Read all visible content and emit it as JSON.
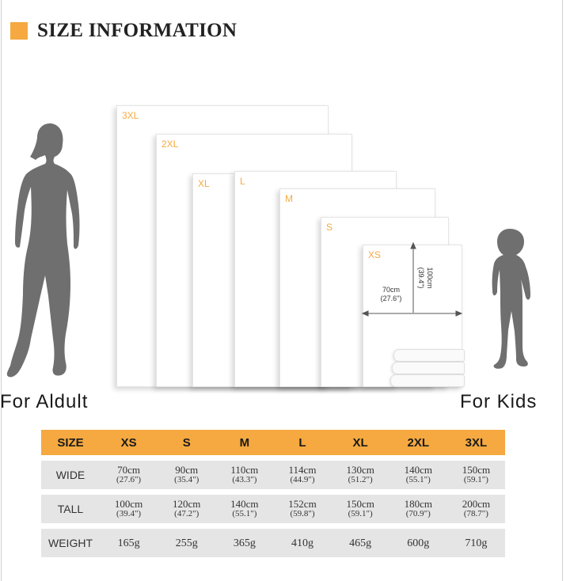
{
  "header": {
    "title": "SIZE INFORMATION",
    "accent": "#f5a940"
  },
  "captions": {
    "adult": "For  Aldult",
    "kids": "For  Kids"
  },
  "sheets": [
    "3XL",
    "2XL",
    "XL",
    "L",
    "M",
    "S",
    "XS"
  ],
  "dimension_labels": {
    "width_cm": "70cm",
    "width_in": "(27.6\")",
    "height_cm": "100cm",
    "height_in": "(39.4\")"
  },
  "colors": {
    "accent": "#f5a940",
    "label_orange": "#f5a940",
    "row_gray": "#e5e5e5",
    "silhouette": "#6f6f6f"
  },
  "table": {
    "header": [
      "SIZE",
      "XS",
      "S",
      "M",
      "L",
      "XL",
      "2XL",
      "3XL"
    ],
    "rows": [
      {
        "label": "WIDE",
        "cells": [
          {
            "cm": "70cm",
            "in": "(27.6\")"
          },
          {
            "cm": "90cm",
            "in": "(35.4\")"
          },
          {
            "cm": "110cm",
            "in": "(43.3\")"
          },
          {
            "cm": "114cm",
            "in": "(44.9\")"
          },
          {
            "cm": "130cm",
            "in": "(51.2\")"
          },
          {
            "cm": "140cm",
            "in": "(55.1\")"
          },
          {
            "cm": "150cm",
            "in": "(59.1\")"
          }
        ]
      },
      {
        "label": "TALL",
        "cells": [
          {
            "cm": "100cm",
            "in": "(39.4\")"
          },
          {
            "cm": "120cm",
            "in": "(47.2\")"
          },
          {
            "cm": "140cm",
            "in": "(55.1\")"
          },
          {
            "cm": "152cm",
            "in": "(59.8\")"
          },
          {
            "cm": "150cm",
            "in": "(59.1\")"
          },
          {
            "cm": "180cm",
            "in": "(70.9\")"
          },
          {
            "cm": "200cm",
            "in": "(78.7\")"
          }
        ]
      }
    ],
    "weight": {
      "label": "WEIGHT",
      "values": [
        "165g",
        "255g",
        "365g",
        "410g",
        "465g",
        "600g",
        "710g"
      ]
    }
  }
}
